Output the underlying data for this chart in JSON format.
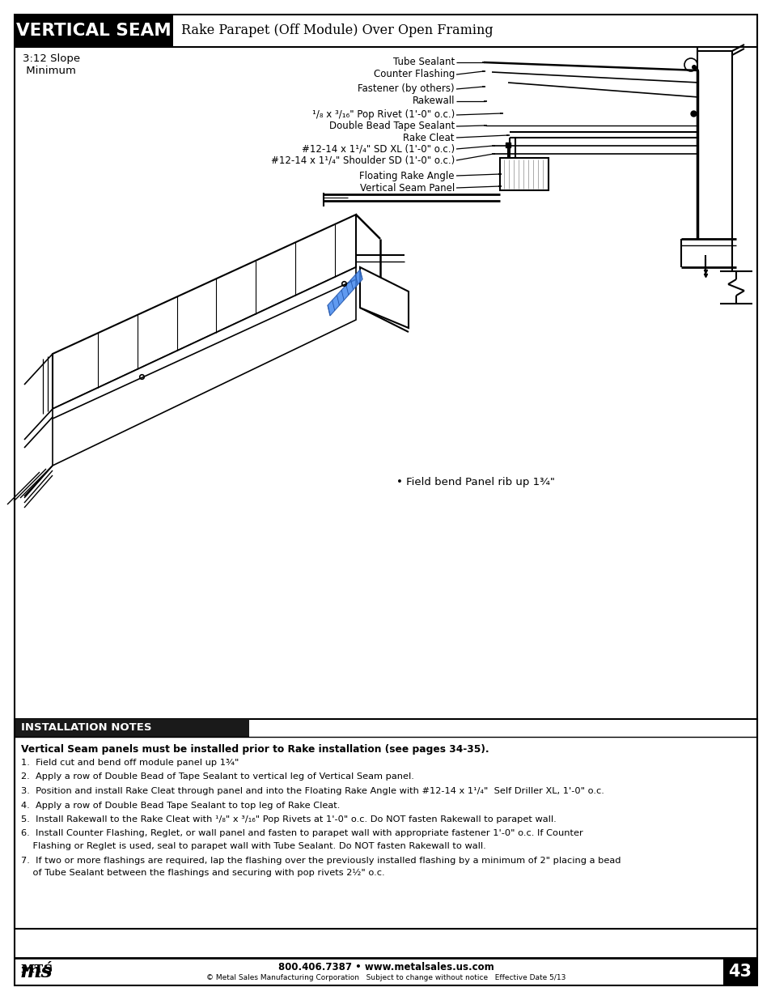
{
  "page_bg": "#ffffff",
  "header_bg": "#000000",
  "header_text": "VERTICAL SEAM",
  "header_text_color": "#ffffff",
  "header_subtitle": "Rake Parapet (Off Module) Over Open Framing",
  "header_subtitle_color": "#000000",
  "slope_label": "3:12 Slope\n Minimum",
  "callouts": [
    "Tube Sealant",
    "Counter Flashing",
    "Fastener (by others)",
    "Rakewall",
    "¹/₈ x ³/₁₆\" Pop Rivet (1'-0\" o.c.)",
    "Double Bead Tape Sealant",
    "Rake Cleat",
    "#12-14 x 1¹/₄\" SD XL (1'-0\" o.c.)",
    "#12-14 x 1¹/₄\" Shoulder SD (1'-0\" o.c.)",
    "Floating Rake Angle",
    "Vertical Seam Panel"
  ],
  "field_bend_note": "• Field bend Panel rib up 1¾\"",
  "notes_header": "INSTALLATION NOTES",
  "notes_bold_line": "Vertical Seam panels must be installed prior to Rake installation (see pages 34-35).",
  "notes_items": [
    "Field cut and bend off module panel up 1¾\"",
    "Apply a row of Double Bead of Tape Sealant to vertical leg of Vertical Seam panel.",
    "Position and install Rake Cleat through panel and into the Floating Rake Angle with #12-14 x 1¹/₄\"  Self Driller XL, 1'-0\" o.c.",
    "Apply a row of Double Bead Tape Sealant to top leg of Rake Cleat.",
    "Install Rakewall to the Rake Cleat with ¹/₈\" x ³/₁₆\" Pop Rivets at 1'-0\" o.c. Do NOT fasten Rakewall to parapet wall.",
    "Install Counter Flashing, Reglet, or wall panel and fasten to parapet wall with appropriate fastener 1'-0\" o.c. If Counter\n    Flashing or Reglet is used, seal to parapet wall with Tube Sealant. Do NOT fasten Rakewall to wall.",
    "If two or more flashings are required, lap the flashing over the previously installed flashing by a minimum of 2\" placing a bead\n    of Tube Sealant between the flashings and securing with pop rivets 2½\" o.c."
  ],
  "footer_phone": "800.406.7387 • www.metalsales.us.com",
  "footer_copy": "© Metal Sales Manufacturing Corporation   Subject to change without notice   Effective Date 5/13",
  "page_number": "43"
}
